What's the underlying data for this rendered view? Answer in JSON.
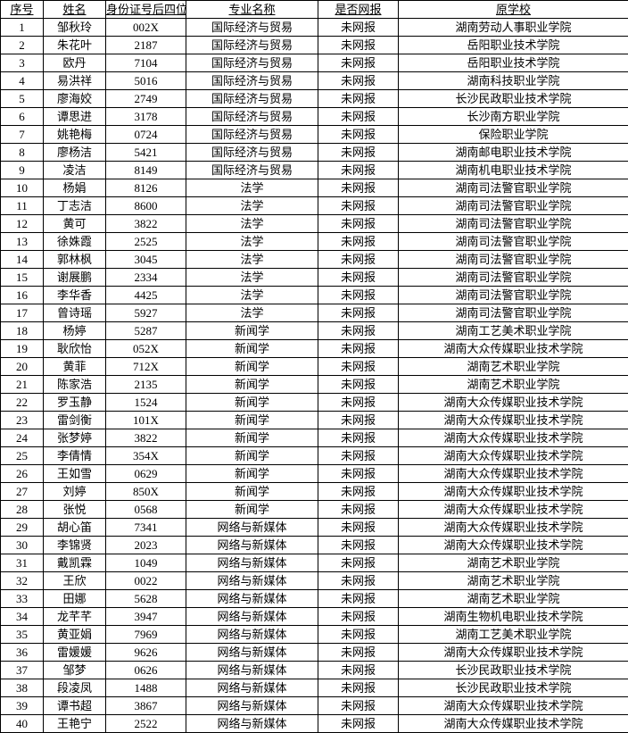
{
  "columns": [
    "序号",
    "姓名",
    "身份证号后四位",
    "专业名称",
    "是否网报",
    "原学校"
  ],
  "rows": [
    [
      "1",
      "邹秋玲",
      "002X",
      "国际经济与贸易",
      "未网报",
      "湖南劳动人事职业学院"
    ],
    [
      "2",
      "朱花叶",
      "2187",
      "国际经济与贸易",
      "未网报",
      "岳阳职业技术学院"
    ],
    [
      "3",
      "欧丹",
      "7104",
      "国际经济与贸易",
      "未网报",
      "岳阳职业技术学院"
    ],
    [
      "4",
      "易洪祥",
      "5016",
      "国际经济与贸易",
      "未网报",
      "湖南科技职业学院"
    ],
    [
      "5",
      "廖海姣",
      "2749",
      "国际经济与贸易",
      "未网报",
      "长沙民政职业技术学院"
    ],
    [
      "6",
      "谭思进",
      "3178",
      "国际经济与贸易",
      "未网报",
      "长沙南方职业学院"
    ],
    [
      "7",
      "姚艳梅",
      "0724",
      "国际经济与贸易",
      "未网报",
      "保险职业学院"
    ],
    [
      "8",
      "廖杨洁",
      "5421",
      "国际经济与贸易",
      "未网报",
      "湖南邮电职业技术学院"
    ],
    [
      "9",
      "凌洁",
      "8149",
      "国际经济与贸易",
      "未网报",
      "湖南机电职业技术学院"
    ],
    [
      "10",
      "杨娟",
      "8126",
      "法学",
      "未网报",
      "湖南司法警官职业学院"
    ],
    [
      "11",
      "丁志洁",
      "8600",
      "法学",
      "未网报",
      "湖南司法警官职业学院"
    ],
    [
      "12",
      "黄可",
      "3822",
      "法学",
      "未网报",
      "湖南司法警官职业学院"
    ],
    [
      "13",
      "徐姝霞",
      "2525",
      "法学",
      "未网报",
      "湖南司法警官职业学院"
    ],
    [
      "14",
      "郭林枫",
      "3045",
      "法学",
      "未网报",
      "湖南司法警官职业学院"
    ],
    [
      "15",
      "谢展鹏",
      "2334",
      "法学",
      "未网报",
      "湖南司法警官职业学院"
    ],
    [
      "16",
      "李华香",
      "4425",
      "法学",
      "未网报",
      "湖南司法警官职业学院"
    ],
    [
      "17",
      "曾诗瑶",
      "5927",
      "法学",
      "未网报",
      "湖南司法警官职业学院"
    ],
    [
      "18",
      "杨婷",
      "5287",
      "新闻学",
      "未网报",
      "湖南工艺美术职业学院"
    ],
    [
      "19",
      "耿欣怡",
      "052X",
      "新闻学",
      "未网报",
      "湖南大众传媒职业技术学院"
    ],
    [
      "20",
      "黄菲",
      "712X",
      "新闻学",
      "未网报",
      "湖南艺术职业学院"
    ],
    [
      "21",
      "陈家浩",
      "2135",
      "新闻学",
      "未网报",
      "湖南艺术职业学院"
    ],
    [
      "22",
      "罗玉静",
      "1524",
      "新闻学",
      "未网报",
      "湖南大众传媒职业技术学院"
    ],
    [
      "23",
      "雷剑衡",
      "101X",
      "新闻学",
      "未网报",
      "湖南大众传媒职业技术学院"
    ],
    [
      "24",
      "张梦婷",
      "3822",
      "新闻学",
      "未网报",
      "湖南大众传媒职业技术学院"
    ],
    [
      "25",
      "李倩情",
      "354X",
      "新闻学",
      "未网报",
      "湖南大众传媒职业技术学院"
    ],
    [
      "26",
      "王如雪",
      "0629",
      "新闻学",
      "未网报",
      "湖南大众传媒职业技术学院"
    ],
    [
      "27",
      "刘婷",
      "850X",
      "新闻学",
      "未网报",
      "湖南大众传媒职业技术学院"
    ],
    [
      "28",
      "张悦",
      "0568",
      "新闻学",
      "未网报",
      "湖南大众传媒职业技术学院"
    ],
    [
      "29",
      "胡心笛",
      "7341",
      "网络与新媒体",
      "未网报",
      "湖南大众传媒职业技术学院"
    ],
    [
      "30",
      "李锦贤",
      "2023",
      "网络与新媒体",
      "未网报",
      "湖南大众传媒职业技术学院"
    ],
    [
      "31",
      "戴凯霖",
      "1049",
      "网络与新媒体",
      "未网报",
      "湖南艺术职业学院"
    ],
    [
      "32",
      "王欣",
      "0022",
      "网络与新媒体",
      "未网报",
      "湖南艺术职业学院"
    ],
    [
      "33",
      "田娜",
      "5628",
      "网络与新媒体",
      "未网报",
      "湖南艺术职业学院"
    ],
    [
      "34",
      "龙芊芊",
      "3947",
      "网络与新媒体",
      "未网报",
      "湖南生物机电职业技术学院"
    ],
    [
      "35",
      "黄亚娟",
      "7969",
      "网络与新媒体",
      "未网报",
      "湖南工艺美术职业学院"
    ],
    [
      "36",
      "雷媛媛",
      "9626",
      "网络与新媒体",
      "未网报",
      "湖南大众传媒职业技术学院"
    ],
    [
      "37",
      "邹梦",
      "0626",
      "网络与新媒体",
      "未网报",
      "长沙民政职业技术学院"
    ],
    [
      "38",
      "段凌凤",
      "1488",
      "网络与新媒体",
      "未网报",
      "长沙民政职业技术学院"
    ],
    [
      "39",
      "谭书超",
      "3867",
      "网络与新媒体",
      "未网报",
      "湖南大众传媒职业技术学院"
    ],
    [
      "40",
      "王艳宁",
      "2522",
      "网络与新媒体",
      "未网报",
      "湖南大众传媒职业技术学院"
    ]
  ]
}
